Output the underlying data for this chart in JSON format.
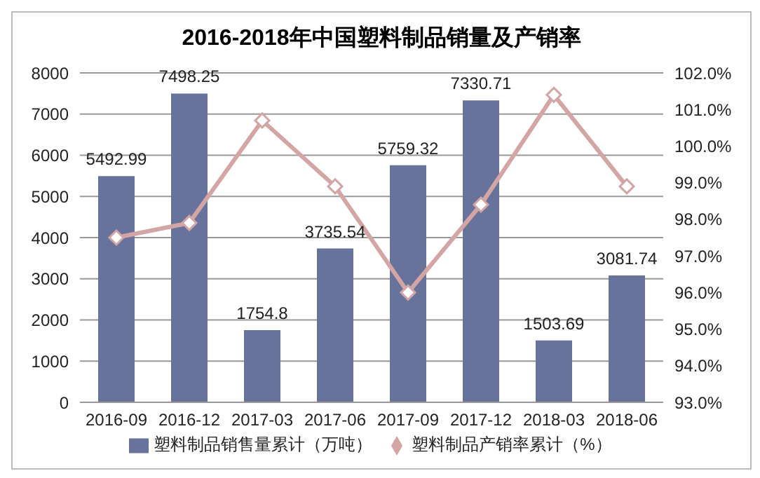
{
  "chart_data": {
    "type": "bar",
    "title": "2016-2018年中国塑料制品销量及产销率",
    "categories": [
      "2016-09",
      "2016-12",
      "2017-03",
      "2017-06",
      "2017-09",
      "2017-12",
      "2018-03",
      "2018-06"
    ],
    "series": [
      {
        "name": "塑料制品销售量累计（万吨）",
        "color": "#67739a",
        "values": [
          5492.99,
          7498.25,
          1754.8,
          3735.54,
          5759.32,
          7330.71,
          1503.69,
          3081.74
        ],
        "value_labels": [
          "5492.99",
          "7498.25",
          "1754.8",
          "3735.54",
          "5759.32",
          "7330.71",
          "1503.69",
          "3081.74"
        ]
      },
      {
        "name": "塑料制品产销率累计（%）",
        "type": "line",
        "axis": "y2",
        "color": "#d4a5a5",
        "marker": "diamond",
        "values": [
          97.5,
          97.9,
          100.7,
          98.9,
          96.0,
          98.4,
          101.4,
          98.9
        ]
      }
    ],
    "ylim": [
      0,
      8000
    ],
    "yticks": [
      0,
      1000,
      2000,
      3000,
      4000,
      5000,
      6000,
      7000,
      8000
    ],
    "y2lim": [
      93,
      102
    ],
    "y2ticks": [
      {
        "value": 93,
        "label": "93.0%"
      },
      {
        "value": 94,
        "label": "94.0%"
      },
      {
        "value": 95,
        "label": "95.0%"
      },
      {
        "value": 96,
        "label": "96.0%"
      },
      {
        "value": 97,
        "label": "97.0%"
      },
      {
        "value": 98,
        "label": "98.0%"
      },
      {
        "value": 99,
        "label": "99.0%"
      },
      {
        "value": 100,
        "label": "100.0%"
      },
      {
        "value": 101,
        "label": "101.0%"
      },
      {
        "value": 102,
        "label": "102.0%"
      }
    ],
    "grid": "y",
    "legend": "bottom"
  }
}
